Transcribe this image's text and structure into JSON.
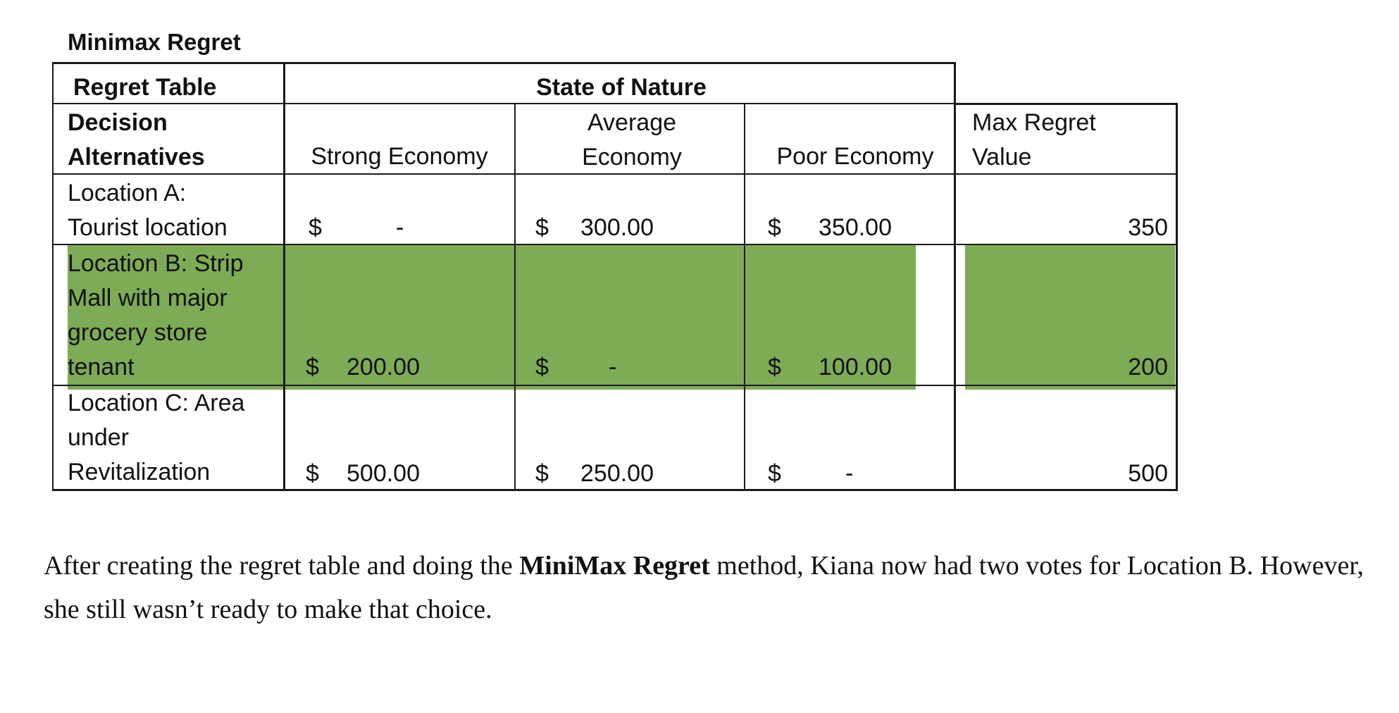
{
  "title": "Minimax Regret",
  "table": {
    "corner_label": "Regret Table",
    "state_header": "State of Nature",
    "alt_header": "Decision\nAlternatives",
    "columns": [
      "Strong Economy",
      "Average\nEconomy",
      "Poor Economy"
    ],
    "max_header": "Max Regret\nValue",
    "currency_symbol": "$",
    "rows": [
      {
        "label": "Location A:\nTourist location",
        "values": [
          "-",
          "300.00",
          "350.00"
        ],
        "max": "350",
        "highlighted": false
      },
      {
        "label": "Location B:  Strip\nMall with major\ngrocery store\ntenant",
        "values": [
          "200.00",
          "-",
          "100.00"
        ],
        "max": "200",
        "highlighted": true
      },
      {
        "label": "Location C: Area\nunder\nRevitalization",
        "values": [
          "500.00",
          "250.00",
          "-"
        ],
        "max": "500",
        "highlighted": false
      }
    ],
    "highlight_color": "#7eab55"
  },
  "paragraph": {
    "part1": "After creating the regret table and doing the ",
    "bold": "MiniMax Regret",
    "part2": " method, Kiana now had two votes for Location B. However, she still wasn’t ready to make that choice."
  }
}
